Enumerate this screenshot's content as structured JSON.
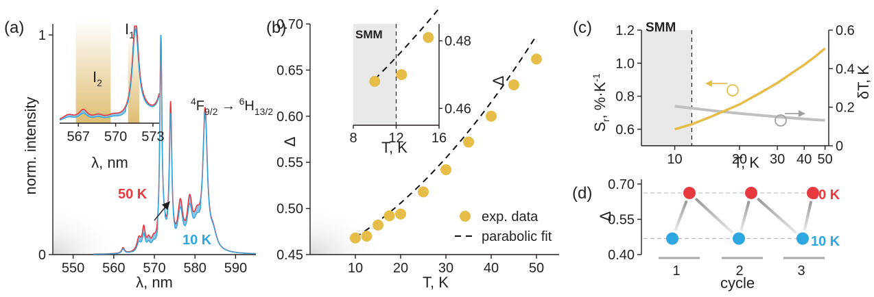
{
  "panel_labels": {
    "a": "(a)",
    "b": "(b)",
    "c": "(c)",
    "d": "(d)"
  },
  "colors": {
    "hot": "#e8393f",
    "cold": "#2ea6e0",
    "band": "#7fbfe3",
    "gold": "#e6bd48",
    "gray": "#c0c0c0",
    "shade": "#e9e9e9"
  },
  "chart_data": [
    {
      "id": "a",
      "type": "line",
      "xlabel": "λ, nm",
      "ylabel": "norm. intensity",
      "xlim": [
        545,
        595
      ],
      "ylim": [
        0,
        1.05
      ],
      "xticks": [
        "550",
        "560",
        "570",
        "580",
        "590"
      ],
      "yticks": [
        "0",
        "1"
      ],
      "transition": {
        "a": "4",
        "b": "F",
        "c": "9/2",
        "arrow": " → ",
        "d": "6",
        "e": "H",
        "f": "13/2"
      },
      "series_labels": {
        "hot": "50 K",
        "cold": "10 K"
      },
      "peaks_hot": [
        {
          "x": 562.3,
          "h": 0.025,
          "w": 0.4
        },
        {
          "x": 566.2,
          "h": 0.06,
          "w": 0.6
        },
        {
          "x": 567.4,
          "h": 0.1,
          "w": 0.45
        },
        {
          "x": 568.6,
          "h": 0.045,
          "w": 0.5
        },
        {
          "x": 569.8,
          "h": 0.04,
          "w": 0.6
        },
        {
          "x": 571.6,
          "h": 0.94,
          "w": 0.3
        },
        {
          "x": 572.3,
          "h": 0.07,
          "w": 0.8
        },
        {
          "x": 574.0,
          "h": 0.64,
          "w": 0.36
        },
        {
          "x": 576.4,
          "h": 0.2,
          "w": 0.75
        },
        {
          "x": 578.7,
          "h": 0.2,
          "w": 0.75
        },
        {
          "x": 580.5,
          "h": 0.12,
          "w": 1.0
        },
        {
          "x": 582.5,
          "h": 0.62,
          "w": 0.65
        },
        {
          "x": 584.5,
          "h": 0.07,
          "w": 1.0
        }
      ],
      "cold_scale": [
        {
          "from": 545,
          "to": 564.5,
          "k": 0.82
        },
        {
          "from": 564.5,
          "to": 570.8,
          "k": 0.72
        },
        {
          "from": 570.8,
          "to": 572.6,
          "k": 1.0
        },
        {
          "from": 572.6,
          "to": 575.0,
          "k": 0.92
        },
        {
          "from": 575.0,
          "to": 581.4,
          "k": 0.85
        },
        {
          "from": 581.4,
          "to": 595,
          "k": 0.96
        }
      ],
      "inset": {
        "xlabel": "λ, nm",
        "xticks": [
          "567",
          "570",
          "573"
        ],
        "xlim": [
          565.5,
          573.5
        ],
        "band_labels": {
          "i2": "2",
          "i1": "1",
          "letter": "I"
        },
        "band_i2": [
          566.8,
          569.6
        ],
        "band_i1": [
          571.0,
          571.9
        ]
      }
    },
    {
      "id": "b",
      "type": "scatter",
      "xlabel": "T, K",
      "ylabel": "Δ",
      "xlim": [
        0,
        55
      ],
      "ylim": [
        0.45,
        0.7
      ],
      "xticks": [
        "10",
        "20",
        "30",
        "40",
        "50"
      ],
      "yticks": [
        "0.45",
        "0.50",
        "0.55",
        "0.60",
        "0.65",
        "0.70"
      ],
      "x": [
        10,
        12.5,
        15,
        17.5,
        20,
        25,
        30,
        35,
        40,
        45,
        50
      ],
      "y": [
        0.468,
        0.47,
        0.482,
        0.492,
        0.494,
        0.518,
        0.542,
        0.572,
        0.6,
        0.634,
        0.662
      ],
      "fit": {
        "a": 5.82e-05,
        "b": 0.00198,
        "c": 0.443
      },
      "legend": {
        "data": "exp. data",
        "fit": "parabolic fit"
      },
      "inset": {
        "xlabel": "T, K",
        "ylabel": "Δ",
        "shade_label": "SMM",
        "xlim": [
          8,
          16
        ],
        "ylim": [
          0.455,
          0.485
        ],
        "xticks": [
          "8",
          "12",
          "16"
        ],
        "yticks": [
          "0.46",
          "0.48"
        ],
        "x": [
          10,
          12.5,
          15
        ],
        "y": [
          0.468,
          0.47,
          0.481
        ]
      }
    },
    {
      "id": "c",
      "type": "line",
      "xlabel": "T, K",
      "ylabel_left": "S",
      "ylabel_left_sub": "r",
      "ylabel_left_unit": ", %·K",
      "ylabel_left_sup": "-1",
      "ylabel_right": "δT, K",
      "xscale": "log",
      "xlim": [
        7,
        52
      ],
      "xticks": [
        "10",
        "20",
        "30",
        "40",
        "50"
      ],
      "ylim_left": [
        0.5,
        1.2
      ],
      "yticks_left": [
        "0.6",
        "0.8",
        "1.0",
        "1.2"
      ],
      "ylim_right": [
        0,
        0.6
      ],
      "yticks_right": [
        "0",
        "0.2",
        "0.4",
        "0.6"
      ],
      "shade_label": "SMM",
      "shade_to": 12,
      "series": [
        {
          "axis": "left",
          "x": [
            10,
            12,
            15,
            20,
            25,
            30,
            35,
            40,
            45,
            50
          ],
          "y": [
            0.6,
            0.63,
            0.68,
            0.75,
            0.82,
            0.88,
            0.94,
            0.99,
            1.04,
            1.09
          ]
        },
        {
          "axis": "right",
          "x": [
            10,
            12,
            15,
            20,
            25,
            30,
            35,
            40,
            45,
            50
          ],
          "y": [
            0.205,
            0.195,
            0.182,
            0.168,
            0.158,
            0.15,
            0.144,
            0.139,
            0.135,
            0.132
          ]
        }
      ]
    },
    {
      "id": "d",
      "type": "scatter",
      "xlabel": "cycle",
      "ylabel": "Δ",
      "ylim": [
        0.4,
        0.72
      ],
      "yticks": [
        "0.40",
        "0.55",
        "0.70"
      ],
      "categories": [
        "1",
        "2",
        "3"
      ],
      "hot_label": "50 K",
      "cold_label": "10 K",
      "hot": [
        0.662,
        0.662,
        0.662
      ],
      "cold": [
        0.468,
        0.468,
        0.468
      ]
    }
  ]
}
